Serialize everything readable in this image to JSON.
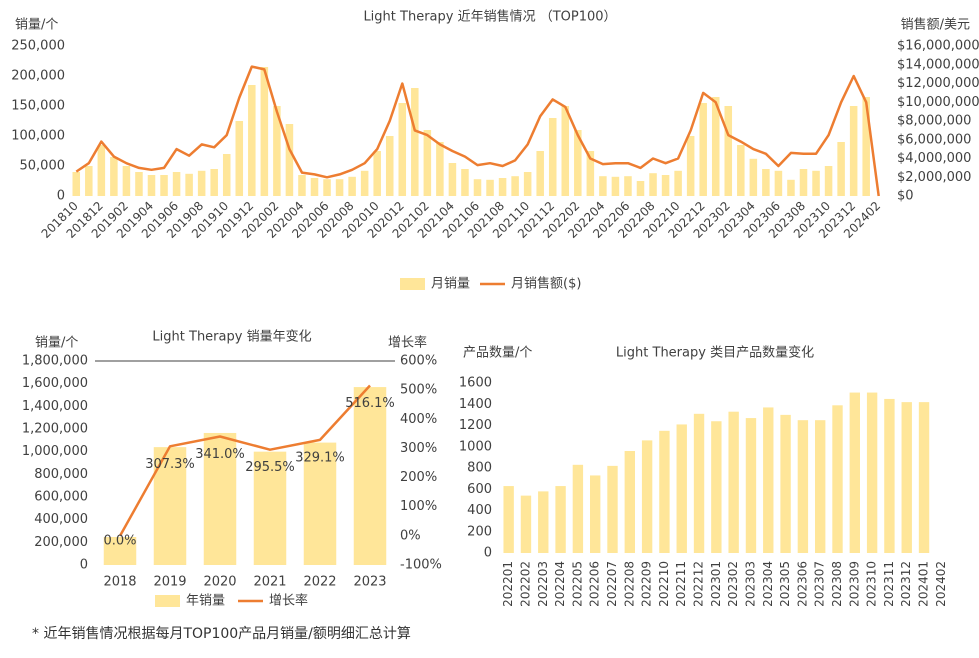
{
  "chart_data": [
    {
      "type": "combo",
      "title": "Light Therapy 近年销售情况 （TOP100）",
      "ylabel": "销量/个",
      "y2label": "销售额/美元",
      "legend": "bottom",
      "categories": [
        "201810",
        null,
        "201812",
        null,
        "201902",
        null,
        "201904",
        null,
        "201906",
        null,
        "201908",
        null,
        "201910",
        null,
        "201912",
        null,
        "202002",
        null,
        "202004",
        null,
        "202006",
        null,
        "202008",
        null,
        "202010",
        null,
        "202012",
        null,
        "202102",
        null,
        "202104",
        null,
        "202106",
        null,
        "202108",
        null,
        "202110",
        null,
        "202112",
        null,
        "202202",
        null,
        "202204",
        null,
        "202206",
        null,
        "202208",
        null,
        "202210",
        null,
        "202212",
        null,
        "202302",
        null,
        "202304",
        null,
        "202306",
        null,
        "202308",
        null,
        "202310",
        null,
        "202312",
        null,
        "202402"
      ],
      "ylim": [
        0,
        250000
      ],
      "yticks": [
        0,
        {
          "value": 50000,
          "label": "50,000"
        },
        {
          "value": 100000,
          "label": "100,000"
        },
        {
          "value": 150000,
          "label": "150,000"
        },
        {
          "value": 200000,
          "label": "200,000"
        },
        {
          "value": 250000,
          "label": "250,000"
        }
      ],
      "y2lim": [
        0,
        16000000
      ],
      "y2ticks": [
        {
          "value": 0,
          "label": "$0"
        },
        {
          "value": 2000000,
          "label": "$2,000,000"
        },
        {
          "value": 4000000,
          "label": "$4,000,000"
        },
        {
          "value": 6000000,
          "label": "$6,000,000"
        },
        {
          "value": 8000000,
          "label": "$8,000,000"
        },
        {
          "value": 10000000,
          "label": "$10,000,000"
        },
        {
          "value": 12000000,
          "label": "$12,000,000"
        },
        {
          "value": 14000000,
          "label": "$14,000,000"
        },
        {
          "value": 16000000,
          "label": "$16,000,000"
        }
      ],
      "series": [
        {
          "name": "月销量",
          "type": "bar",
          "color": "#FFE699",
          "values": [
            40000,
            50000,
            85000,
            65000,
            50000,
            40000,
            35000,
            35000,
            40000,
            37000,
            42000,
            45000,
            70000,
            125000,
            185000,
            215000,
            150000,
            120000,
            35000,
            30000,
            28000,
            28000,
            32000,
            42000,
            75000,
            100000,
            155000,
            180000,
            110000,
            90000,
            55000,
            45000,
            28000,
            27000,
            30000,
            33000,
            40000,
            75000,
            130000,
            150000,
            110000,
            75000,
            33000,
            32000,
            33000,
            25000,
            38000,
            35000,
            42000,
            100000,
            155000,
            165000,
            150000,
            85000,
            62000,
            45000,
            42000,
            27000,
            45000,
            42000,
            50000,
            90000,
            150000,
            165000,
            0
          ]
        },
        {
          "name": "月销售额($)",
          "type": "line",
          "axis": "y2",
          "color": "#ED7D31",
          "values": [
            2600000,
            3500000,
            5800000,
            4200000,
            3500000,
            3000000,
            2800000,
            3000000,
            5000000,
            4300000,
            5500000,
            5200000,
            6500000,
            10500000,
            13800000,
            13500000,
            9000000,
            5000000,
            2500000,
            2300000,
            2000000,
            2300000,
            2800000,
            3500000,
            5000000,
            8000000,
            12000000,
            7000000,
            6500000,
            5500000,
            4800000,
            4200000,
            3300000,
            3500000,
            3200000,
            3800000,
            5500000,
            8500000,
            10300000,
            9500000,
            6500000,
            4000000,
            3400000,
            3500000,
            3500000,
            3000000,
            4000000,
            3500000,
            4000000,
            7000000,
            11000000,
            10000000,
            6500000,
            5800000,
            5000000,
            4500000,
            3200000,
            4600000,
            4500000,
            4500000,
            6500000,
            10000000,
            12800000,
            10000000,
            0
          ]
        }
      ]
    },
    {
      "type": "combo",
      "title": "Light Therapy 销量年变化",
      "ylabel": "销量/个",
      "y2label": "增长率",
      "legend": "bottom",
      "categories": [
        "2018",
        "2019",
        "2020",
        "2021",
        "2022",
        "2023"
      ],
      "ylim": [
        0,
        1800000
      ],
      "yticks": [
        0,
        {
          "value": 200000,
          "label": "200,000"
        },
        {
          "value": 400000,
          "label": "400,000"
        },
        {
          "value": 600000,
          "label": "600,000"
        },
        {
          "value": 800000,
          "label": "800,000"
        },
        {
          "value": 1000000,
          "label": "1,000,000"
        },
        {
          "value": 1200000,
          "label": "1,200,000"
        },
        {
          "value": 1400000,
          "label": "1,400,000"
        },
        {
          "value": 1600000,
          "label": "1,600,000"
        },
        {
          "value": 1800000,
          "label": "1,800,000"
        }
      ],
      "y2lim": [
        -100,
        600
      ],
      "y2ticks": [
        {
          "value": -100,
          "label": "-100%"
        },
        {
          "value": 0,
          "label": "0%"
        },
        {
          "value": 100,
          "label": "100%"
        },
        {
          "value": 200,
          "label": "200%"
        },
        {
          "value": 300,
          "label": "300%"
        },
        {
          "value": 400,
          "label": "400%"
        },
        {
          "value": 500,
          "label": "500%"
        },
        {
          "value": 600,
          "label": "600%"
        }
      ],
      "series": [
        {
          "name": "年销量",
          "type": "bar",
          "color": "#FFE699",
          "values": [
            247000,
            1040000,
            1165000,
            1000000,
            1080000,
            1570000
          ]
        },
        {
          "name": "增长率",
          "type": "line",
          "axis": "y2",
          "color": "#ED7D31",
          "values": [
            0,
            307.3,
            341.0,
            295.5,
            329.1,
            516.1
          ],
          "value_labels": [
            "0.0%",
            "307.3%",
            "341.0%",
            "295.5%",
            "329.1%",
            "516.1%"
          ]
        }
      ]
    },
    {
      "type": "bar",
      "title": "Light Therapy 类目产品数量变化",
      "ylabel": "产品数量/个",
      "categories": [
        "202201",
        "202202",
        "202203",
        "202204",
        "202205",
        "202206",
        "202207",
        "202208",
        "202209",
        "202210",
        "202211",
        "202212",
        "202301",
        "202302",
        "202303",
        "202304",
        "202305",
        "202306",
        "202307",
        "202308",
        "202309",
        "202310",
        "202311",
        "202312",
        "202401",
        "202402"
      ],
      "ylim": [
        0,
        1600
      ],
      "yticks": [
        0,
        200,
        400,
        600,
        800,
        1000,
        1200,
        1400,
        1600
      ],
      "series": [
        {
          "type": "bar",
          "color": "#FFE699",
          "values": [
            630,
            540,
            580,
            630,
            830,
            730,
            820,
            960,
            1060,
            1150,
            1210,
            1310,
            1240,
            1330,
            1270,
            1370,
            1300,
            1250,
            1250,
            1390,
            1510,
            1510,
            1450,
            1420,
            1420,
            0
          ]
        }
      ]
    }
  ],
  "footnote": "* 近年销售情况根据每月TOP100产品月销量/额明细汇总计算"
}
